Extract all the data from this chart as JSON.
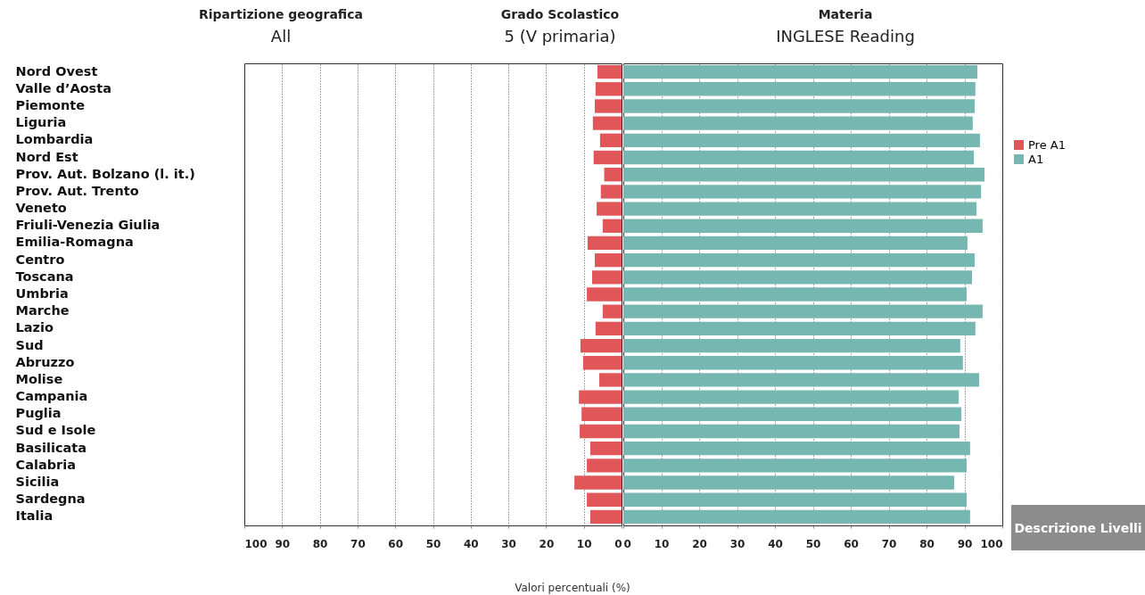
{
  "chart_data": [
    {
      "type": "bar",
      "orientation": "horizontal",
      "annotations": [
        "Ripartizione geografica",
        "All",
        "Grado Scolastico",
        "5 (V primaria)",
        "Materia",
        "INGLESE Reading",
        "Valori percentuali (%)"
      ],
      "categories": [
        "Nord Ovest",
        "Valle d’Aosta",
        "Piemonte",
        "Liguria",
        "Lombardia",
        "Nord Est",
        "Prov. Aut. Bolzano (l. it.)",
        "Prov. Aut. Trento",
        "Veneto",
        "Friuli-Venezia Giulia",
        "Emilia-Romagna",
        "Centro",
        "Toscana",
        "Umbria",
        "Marche",
        "Lazio",
        "Sud",
        "Abruzzo",
        "Molise",
        "Campania",
        "Puglia",
        "Sud e Isole",
        "Basilicata",
        "Calabria",
        "Sicilia",
        "Sardegna",
        "Italia"
      ],
      "series": [
        {
          "name": "Pre A1",
          "color": "#e15759",
          "values": [
            6.4,
            6.9,
            7.1,
            7.6,
            5.7,
            7.4,
            4.6,
            5.5,
            6.6,
            5.0,
            9.0,
            7.1,
            7.8,
            9.2,
            5.0,
            6.9,
            10.9,
            10.2,
            5.9,
            11.3,
            10.6,
            11.1,
            8.3,
            9.2,
            12.5,
            9.2,
            8.3
          ]
        }
      ],
      "xlim": [
        100,
        0
      ],
      "xticks": [
        100,
        90,
        80,
        70,
        60,
        50,
        40,
        30,
        20,
        10,
        0
      ],
      "grid": "x"
    },
    {
      "type": "bar",
      "orientation": "horizontal",
      "annotations": [
        "Descrizione Livelli"
      ],
      "categories": [
        null,
        null,
        null,
        null,
        null,
        null,
        null,
        null,
        null,
        null,
        null,
        null,
        null,
        null,
        null,
        null,
        null,
        null,
        null,
        null,
        null,
        null,
        null,
        null,
        null,
        null,
        null
      ],
      "series": [
        {
          "name": "A1",
          "color": "#76b7b2",
          "values": [
            93.4,
            92.9,
            92.7,
            92.2,
            94.1,
            92.5,
            95.3,
            94.4,
            93.2,
            94.8,
            90.8,
            92.7,
            92.0,
            90.6,
            94.8,
            92.9,
            88.9,
            89.6,
            93.9,
            88.5,
            89.2,
            88.7,
            91.5,
            90.6,
            87.3,
            90.6,
            91.5
          ]
        }
      ],
      "xlim": [
        0,
        100
      ],
      "xticks": [
        0,
        10,
        20,
        30,
        40,
        50,
        60,
        70,
        80,
        90,
        100
      ],
      "grid": "x",
      "legend": "right",
      "tick_labels": "x"
    }
  ]
}
